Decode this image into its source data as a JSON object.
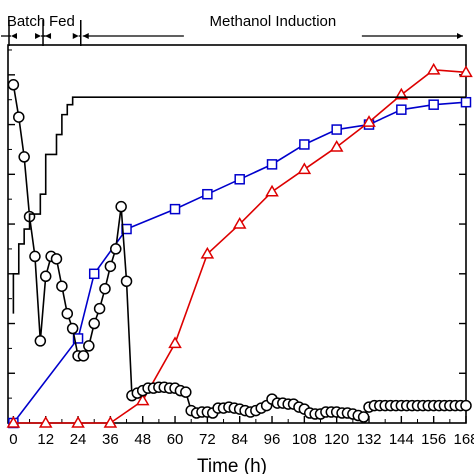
{
  "chart_data": {
    "type": "line",
    "title": "",
    "xlabel": "Time (h)",
    "ylabel": "",
    "xlim": [
      -2,
      168
    ],
    "ylim": [
      0,
      7.6
    ],
    "xticks": [
      0,
      12,
      24,
      36,
      48,
      60,
      72,
      84,
      96,
      108,
      120,
      132,
      144,
      156,
      168
    ],
    "xtick_labels": [
      "0",
      "12",
      "24",
      "36",
      "48",
      "60",
      "72",
      "84",
      "96",
      "108",
      "120",
      "132",
      "144",
      "156",
      "168"
    ],
    "phases": [
      {
        "name": "Batch",
        "start": 0,
        "end": 11
      },
      {
        "name": "Fed",
        "start": 11,
        "end": 25
      },
      {
        "name": "Methanol Induction",
        "start": 25,
        "end": 168
      }
    ],
    "series": [
      {
        "name": "",
        "color": "#0000cc",
        "marker": "square",
        "x": [
          0,
          24,
          30,
          42,
          60,
          72,
          84,
          96,
          108,
          120,
          132,
          144,
          156,
          168
        ],
        "y": [
          0,
          1.7,
          3.0,
          3.9,
          4.3,
          4.6,
          4.9,
          5.2,
          5.6,
          5.9,
          6.0,
          6.3,
          6.4,
          6.45
        ]
      },
      {
        "name": "",
        "color": "#dd0000",
        "marker": "triangle",
        "x": [
          0,
          12,
          24,
          36,
          48,
          60,
          72,
          84,
          96,
          108,
          120,
          132,
          144,
          156,
          168
        ],
        "y": [
          0,
          0,
          0,
          0,
          0.45,
          1.6,
          3.4,
          4.0,
          4.65,
          5.1,
          5.55,
          6.05,
          6.6,
          7.1,
          7.05
        ]
      },
      {
        "name": "",
        "color": "#000000",
        "marker": "circle",
        "x": [
          0,
          2,
          4,
          6,
          8,
          10,
          12,
          14,
          16,
          18,
          20,
          22,
          24,
          26,
          28,
          30,
          32,
          34,
          36,
          38,
          40,
          42,
          44,
          46,
          48,
          50,
          52,
          54,
          56,
          58,
          60,
          62,
          64,
          66,
          68,
          70,
          72,
          74,
          76,
          78,
          80,
          82,
          84,
          86,
          88,
          90,
          92,
          94,
          96,
          98,
          100,
          102,
          104,
          106,
          108,
          110,
          112,
          114,
          116,
          118,
          120,
          122,
          124,
          126,
          128,
          130,
          132,
          134,
          136,
          138,
          140,
          142,
          144,
          146,
          148,
          150,
          152,
          154,
          156,
          158,
          160,
          162,
          164,
          166,
          168
        ],
        "y": [
          6.8,
          6.15,
          5.35,
          4.15,
          3.35,
          1.65,
          2.95,
          3.35,
          3.3,
          2.75,
          2.2,
          1.9,
          1.35,
          1.35,
          1.55,
          2.0,
          2.3,
          2.7,
          3.15,
          3.5,
          4.35,
          2.85,
          0.55,
          0.6,
          0.65,
          0.7,
          0.7,
          0.72,
          0.72,
          0.7,
          0.7,
          0.65,
          0.62,
          0.25,
          0.2,
          0.22,
          0.22,
          0.2,
          0.3,
          0.3,
          0.32,
          0.3,
          0.28,
          0.25,
          0.22,
          0.25,
          0.3,
          0.35,
          0.48,
          0.4,
          0.4,
          0.38,
          0.38,
          0.32,
          0.28,
          0.2,
          0.18,
          0.18,
          0.22,
          0.22,
          0.22,
          0.2,
          0.2,
          0.18,
          0.15,
          0.12,
          0.32,
          0.35,
          0.35,
          0.35,
          0.35,
          0.35,
          0.35,
          0.35,
          0.35,
          0.35,
          0.35,
          0.35,
          0.35,
          0.35,
          0.35,
          0.35,
          0.35,
          0.35,
          0.35
        ]
      },
      {
        "name": "",
        "color": "#000000",
        "marker": "none",
        "step": true,
        "x": [
          0,
          0,
          2,
          2,
          4,
          4,
          6,
          6,
          10,
          10,
          12,
          12,
          16,
          16,
          18,
          18,
          20,
          20,
          22,
          22,
          24,
          24,
          48,
          96,
          144,
          168
        ],
        "y": [
          2.2,
          3.0,
          3.0,
          3.6,
          3.6,
          3.9,
          3.9,
          4.2,
          4.2,
          4.6,
          4.6,
          5.4,
          5.4,
          5.8,
          5.8,
          6.2,
          6.2,
          6.4,
          6.4,
          6.55,
          6.55,
          6.55,
          6.55,
          6.55,
          6.55,
          6.55
        ]
      }
    ]
  }
}
